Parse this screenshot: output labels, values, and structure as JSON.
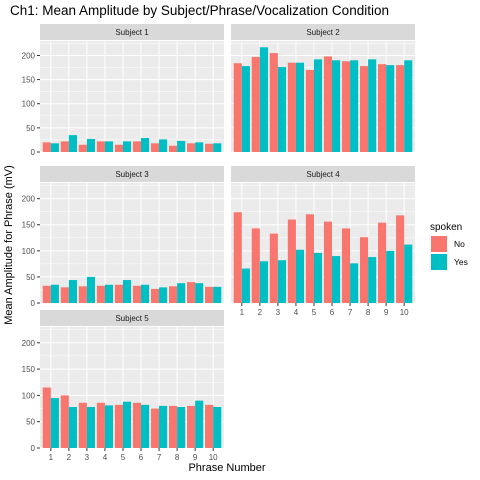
{
  "colors": {
    "No": "#F8766D",
    "Yes": "#00BFC4",
    "panel_bg": "#EBEBEB",
    "strip_bg": "#D9D9D9",
    "grid": "#FFFFFF"
  },
  "chart_data": {
    "type": "bar",
    "title": "Ch1: Mean Amplitude by Subject/Phrase/Vocalization Condition",
    "xlabel": "Phrase Number",
    "ylabel": "Mean Amplitude for Phrase (mV)",
    "categories": [
      "1",
      "2",
      "3",
      "4",
      "5",
      "6",
      "7",
      "8",
      "9",
      "10"
    ],
    "ylim": [
      0,
      230
    ],
    "yticks": [
      0,
      50,
      100,
      150,
      200
    ],
    "grid": true,
    "legend": {
      "title": "spoken",
      "position": "right",
      "entries": [
        "No",
        "Yes"
      ]
    },
    "panels": [
      {
        "strip": "Subject 1",
        "series": [
          {
            "name": "No",
            "values": [
              20,
              22,
              15,
              22,
              15,
              22,
              18,
              13,
              18,
              17
            ]
          },
          {
            "name": "Yes",
            "values": [
              18,
              35,
              27,
              22,
              22,
              29,
              26,
              23,
              20,
              18
            ]
          }
        ]
      },
      {
        "strip": "Subject 2",
        "series": [
          {
            "name": "No",
            "values": [
              184,
              197,
              205,
              185,
              170,
              198,
              188,
              178,
              182,
              180
            ]
          },
          {
            "name": "Yes",
            "values": [
              178,
              217,
              176,
              185,
              192,
              190,
              190,
              192,
              180,
              190
            ]
          }
        ]
      },
      {
        "strip": "Subject 3",
        "series": [
          {
            "name": "No",
            "values": [
              33,
              30,
              32,
              33,
              35,
              33,
              27,
              32,
              40,
              31
            ]
          },
          {
            "name": "Yes",
            "values": [
              35,
              44,
              50,
              35,
              44,
              35,
              30,
              38,
              38,
              31
            ]
          }
        ]
      },
      {
        "strip": "Subject 4",
        "series": [
          {
            "name": "No",
            "values": [
              174,
              143,
              133,
              160,
              170,
              156,
              143,
              126,
              154,
              168
            ]
          },
          {
            "name": "Yes",
            "values": [
              66,
              80,
              82,
              102,
              96,
              90,
              76,
              88,
              100,
              112
            ]
          }
        ]
      },
      {
        "strip": "Subject 5",
        "series": [
          {
            "name": "No",
            "values": [
              115,
              100,
              86,
              86,
              82,
              86,
              75,
              80,
              80,
              82
            ]
          },
          {
            "name": "Yes",
            "values": [
              95,
              78,
              78,
              81,
              88,
              82,
              80,
              78,
              90,
              78
            ]
          }
        ]
      }
    ]
  }
}
